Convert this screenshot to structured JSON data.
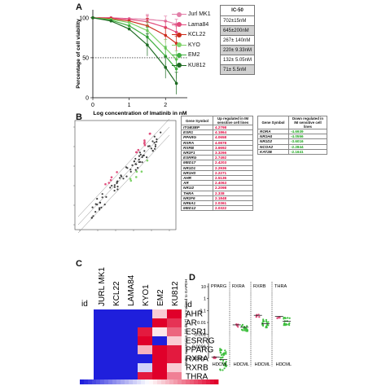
{
  "panels": {
    "a": "A",
    "b": "B",
    "c": "C",
    "d": "D"
  },
  "chart_data": [
    {
      "type": "line",
      "panel": "A",
      "xlabel": "Log concentration of Imatinib in nM",
      "ylabel": "Percentage of cell viability",
      "xlim": [
        0,
        2.6
      ],
      "ylim": [
        0,
        110
      ],
      "x_ticks": [
        "0",
        "1",
        "2"
      ],
      "y_ticks": [
        "0",
        "50",
        "100"
      ],
      "reference_line_y": 50,
      "legend_position": "right",
      "series": [
        {
          "name": "Jurl MK1",
          "color": "#e27fa8",
          "marker": "circle",
          "x": [
            0,
            0.5,
            1,
            1.5,
            2,
            2.3
          ],
          "y": [
            100,
            100,
            99,
            98,
            96,
            92
          ]
        },
        {
          "name": "Lama84",
          "color": "#e14a7c",
          "marker": "square",
          "x": [
            0,
            0.5,
            1,
            1.5,
            2,
            2.3
          ],
          "y": [
            100,
            100,
            98,
            95,
            88,
            82
          ]
        },
        {
          "name": "KCL22",
          "color": "#cc2a1a",
          "marker": "triangle",
          "x": [
            0,
            0.5,
            1,
            1.5,
            2,
            2.3
          ],
          "y": [
            100,
            99,
            96,
            90,
            78,
            68
          ]
        },
        {
          "name": "KYO",
          "color": "#7fd36a",
          "marker": "triangle-down",
          "x": [
            0,
            0.5,
            1,
            1.5,
            2,
            2.3
          ],
          "y": [
            100,
            98,
            94,
            84,
            62,
            48
          ]
        },
        {
          "name": "EM2",
          "color": "#3fae3f",
          "marker": "diamond",
          "x": [
            0,
            0.5,
            1,
            1.5,
            2,
            2.3
          ],
          "y": [
            100,
            97,
            90,
            76,
            52,
            36
          ]
        },
        {
          "name": "KU812",
          "color": "#1e6b23",
          "marker": "circle",
          "x": [
            0,
            0.5,
            1,
            1.5,
            2,
            2.3
          ],
          "y": [
            100,
            96,
            86,
            66,
            38,
            18
          ]
        }
      ],
      "ic50_table": {
        "header": "IC-50",
        "values": [
          "702±15nM",
          "645±200nM",
          "267± 140nM",
          "220± 9.33nM",
          "132± 5.05nM",
          "71± 5.5nM"
        ]
      }
    },
    {
      "type": "scatter",
      "panel": "B",
      "points_colors": {
        "up": "#e0507e",
        "down": "#7fd36a",
        "neutral": "#404040"
      },
      "up_table": {
        "col1": "Gene Symbol",
        "col2": "Up regulated in IM sensitive cell lines",
        "rows": [
          [
            "ITGB3BP",
            "4.2798"
          ],
          [
            "ESR1",
            "4.1864"
          ],
          [
            "PPARG",
            "4.0658"
          ],
          [
            "RXRA",
            "4.0878"
          ],
          [
            "RXRB",
            "3.6692"
          ],
          [
            "NR2F1",
            "3.3266"
          ],
          [
            "ESRRG",
            "2.7492"
          ],
          [
            "MED17",
            "2.4203"
          ],
          [
            "NR1D1",
            "2.2936"
          ],
          [
            "NR1H3",
            "2.2271"
          ],
          [
            "AHR",
            "2.5136"
          ],
          [
            "AR",
            "2.4063"
          ],
          [
            "NR1I2",
            "2.2098"
          ],
          [
            "THRA",
            "2.338"
          ],
          [
            "NR2F6",
            "2.1848"
          ],
          [
            "NR6A1",
            "2.0361"
          ],
          [
            "MED12",
            "2.0322"
          ]
        ]
      },
      "down_table": {
        "col1": "Gene Symbol",
        "col2": "Down regulated in IM sensitive cell lines",
        "rows": [
          [
            "RORA",
            "-4.6939"
          ],
          [
            "NR1H4",
            "-4.0556"
          ],
          [
            "NR1D2",
            "-3.6016"
          ],
          [
            "NCOA2",
            "-2.2844"
          ],
          [
            "KAT2B",
            "-2.1641"
          ]
        ]
      }
    },
    {
      "type": "heatmap",
      "panel": "C",
      "row_label": "id",
      "columns": [
        "JURL MK1",
        "KCL22",
        "LAMA84",
        "KYO1",
        "EM2",
        "KU812"
      ],
      "rows": [
        "AHR",
        "AR",
        "ESR1",
        "ESRRG",
        "PPARG",
        "RXRA",
        "RXRB",
        "THRA"
      ],
      "values": [
        [
          -1,
          -1,
          -1,
          -1,
          0.2,
          1
        ],
        [
          -1,
          -1,
          -1,
          -1,
          1,
          0.8
        ],
        [
          -1,
          -1,
          -1,
          0.9,
          0.1,
          0.6
        ],
        [
          -1,
          -1,
          -1,
          1,
          -1,
          0.2
        ],
        [
          -1,
          -1,
          -1,
          0.3,
          1,
          0.9
        ],
        [
          -1,
          -1,
          -1,
          -1,
          1,
          0.9
        ],
        [
          -1,
          -1,
          -1,
          -0.2,
          1,
          0.2
        ],
        [
          -1,
          -1,
          -1,
          0.9,
          1,
          0.5
        ]
      ],
      "colors": {
        "low": "#1f1fdc",
        "mid": "#ffffff",
        "high": "#e0002a"
      }
    },
    {
      "type": "scatter",
      "panel": "D",
      "ylabel": "NHRs expression (2^-dCT) normalized to GAPDH",
      "y_scale": "log",
      "y_ticks": [
        "10",
        "1",
        "0.1",
        "0.01",
        "0.001",
        "0.0001",
        "0.00001"
      ],
      "groups": [
        "PPARG",
        "RXRA",
        "RXRB",
        "THRA"
      ],
      "categories": [
        "HD",
        "CML"
      ],
      "hd_color": "#e0507e",
      "cml_color": "#3fbf3f"
    }
  ]
}
